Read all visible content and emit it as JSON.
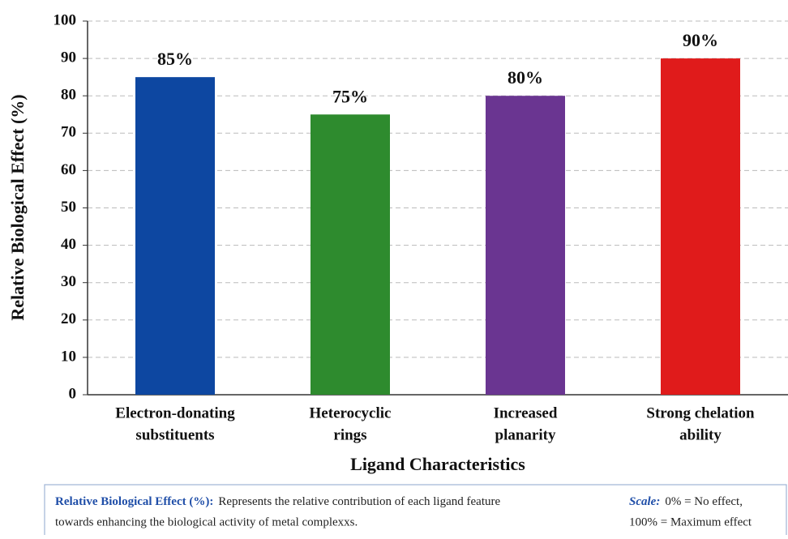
{
  "chart_data": {
    "type": "bar",
    "categories": [
      [
        "Electron-donating",
        "substituents"
      ],
      [
        "Heterocyclic",
        "rings"
      ],
      [
        "Increased",
        "planarity"
      ],
      [
        "Strong chelation",
        "ability"
      ]
    ],
    "values": [
      85,
      75,
      80,
      90
    ],
    "value_labels": [
      "85%",
      "75%",
      "80%",
      "90%"
    ],
    "colors": [
      "#0d47a1",
      "#2e8b2e",
      "#6a3591",
      "#e01b1b"
    ],
    "xlabel": "Ligand Characteristics",
    "ylabel": "Relative Biological Effect (%)",
    "ylim": [
      0,
      100
    ],
    "yticks": [
      0,
      10,
      20,
      30,
      40,
      50,
      60,
      70,
      80,
      90,
      100
    ],
    "grid": true,
    "note": {
      "label": "Relative Biological Effect (%):",
      "lines": [
        "Represents the relative contribution of each ligand feature",
        "towards enhancing the biological activity of metal complexxs."
      ]
    },
    "scale": {
      "label": "Scale:",
      "lines": [
        "0% = No effect,",
        "100% = Maximum effect"
      ]
    }
  }
}
